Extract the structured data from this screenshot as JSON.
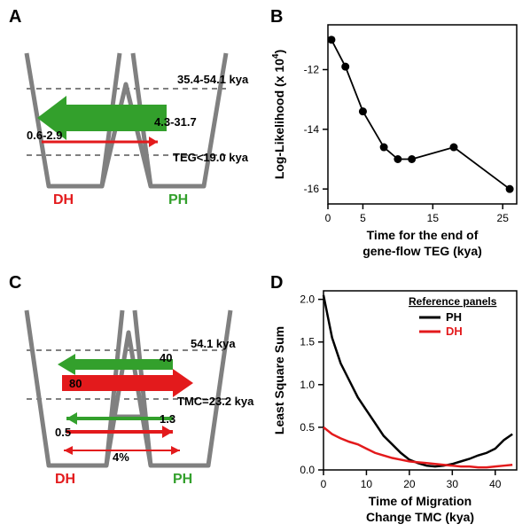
{
  "panelA": {
    "label": "A",
    "dh_label": "DH",
    "ph_label": "PH",
    "dh_color": "#e31a1c",
    "ph_color": "#33a02c",
    "top_line_label": "35.4-54.1 kya",
    "bottom_line_label": "TEG<19.0 kya",
    "green_arrow_label": "4.3-31.7",
    "red_arrow_label": "0.6-2.9",
    "struct_color": "#808080"
  },
  "panelB": {
    "label": "B",
    "xlabel_line1": "Time for the end of",
    "xlabel_line2": "gene-flow TEG (kya)",
    "ylabel1": "Log-Likelihood (x 10",
    "ylabel_sup": "4",
    "ylabel2": ")",
    "xlim": [
      0,
      27
    ],
    "ylim": [
      -16.5,
      -10.5
    ],
    "xticks": [
      0,
      5,
      15,
      25
    ],
    "yticks": [
      -16,
      -14,
      -12
    ],
    "points_x": [
      0.5,
      2.5,
      5,
      8,
      10,
      12,
      18,
      26
    ],
    "points_y": [
      -11.0,
      -11.9,
      -13.4,
      -14.6,
      -15.0,
      -15.0,
      -14.6,
      -16.0
    ],
    "point_color": "#000000",
    "line_color": "#000000",
    "label_fontsize": 14,
    "tick_fontsize": 12
  },
  "panelC": {
    "label": "C",
    "dh_label": "DH",
    "ph_label": "PH",
    "dh_color": "#e31a1c",
    "ph_color": "#33a02c",
    "top_line_label": "54.1 kya",
    "mid_line_label": "TMC=23.2 kya",
    "upper_green_label": "40",
    "upper_red_label": "80",
    "lower_green_label": "1.3",
    "lower_red_label": "0.5",
    "bottom_pct_label": "4%",
    "struct_color": "#808080"
  },
  "panelD": {
    "label": "D",
    "xlabel_line1": "Time of Migration",
    "xlabel_line2": "Change TMC (kya)",
    "ylabel": "Least Square Sum",
    "legend_title": "Reference panels",
    "legend_PH": "PH",
    "legend_DH": "DH",
    "ph_color": "#000000",
    "dh_color": "#e31a1c",
    "xlim": [
      0,
      45
    ],
    "ylim": [
      0,
      2.1
    ],
    "xticks": [
      0,
      10,
      20,
      30,
      40
    ],
    "yticks": [
      0.0,
      0.5,
      1.0,
      1.5,
      2.0
    ],
    "ph_x": [
      0,
      2,
      4,
      6,
      8,
      10,
      12,
      14,
      16,
      18,
      20,
      22,
      24,
      26,
      28,
      30,
      32,
      34,
      36,
      38,
      40,
      42,
      44
    ],
    "ph_y": [
      2.05,
      1.55,
      1.25,
      1.05,
      0.85,
      0.7,
      0.55,
      0.4,
      0.3,
      0.2,
      0.12,
      0.08,
      0.05,
      0.04,
      0.05,
      0.07,
      0.1,
      0.13,
      0.17,
      0.2,
      0.25,
      0.35,
      0.42
    ],
    "dh_x": [
      0,
      2,
      4,
      6,
      8,
      10,
      12,
      14,
      16,
      18,
      20,
      22,
      24,
      26,
      28,
      30,
      32,
      34,
      36,
      38,
      40,
      42,
      44
    ],
    "dh_y": [
      0.5,
      0.42,
      0.37,
      0.33,
      0.3,
      0.25,
      0.2,
      0.17,
      0.14,
      0.12,
      0.1,
      0.09,
      0.08,
      0.07,
      0.06,
      0.05,
      0.04,
      0.04,
      0.03,
      0.03,
      0.04,
      0.05,
      0.06
    ],
    "label_fontsize": 14,
    "tick_fontsize": 12,
    "line_width": 2.5
  }
}
